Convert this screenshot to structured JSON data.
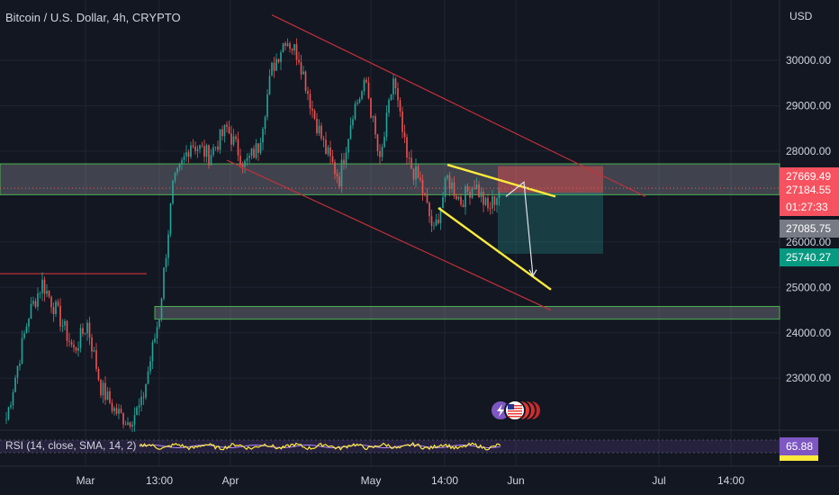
{
  "header": {
    "title": "Bitcoin / U.S. Dollar, 4h, CRYPTO",
    "currency": "USD"
  },
  "indicator": {
    "rsi_label": "RSI (14, close, SMA, 14, 2)",
    "rsi_value": "65.88"
  },
  "price_tags": {
    "target": "27669.49",
    "last_price": "27184.55",
    "countdown": "01:27:33",
    "crosshair": "27085.75",
    "stop": "25740.27"
  },
  "colors": {
    "background": "#131722",
    "up": "#26a69a",
    "down": "#ef5350",
    "channel": "#c2303a",
    "wedge": "#ffeb3b",
    "zone_border": "#4caf50",
    "rsi_line": "#ffeb3b",
    "rsi_signal": "#b388ff"
  },
  "icons": [
    "lightning-icon",
    "us-flag-icon"
  ],
  "chart_data": {
    "type": "candlestick",
    "title": "Bitcoin / U.S. Dollar, 4h, CRYPTO",
    "ylabel": "USD",
    "ylim": [
      22050,
      30950
    ],
    "y_ticks": [
      "30000.00",
      "29000.00",
      "28000.00",
      "26000.00",
      "25000.00",
      "24000.00",
      "23000.00"
    ],
    "x_tick_labels": [
      "Mar",
      "13:00",
      "Apr",
      "May",
      "14:00",
      "Jun",
      "Jul",
      "14:00"
    ],
    "price_path": [
      [
        0,
        22100
      ],
      [
        3,
        23500
      ],
      [
        5,
        24400
      ],
      [
        8,
        25100
      ],
      [
        12,
        24300
      ],
      [
        15,
        23600
      ],
      [
        18,
        24200
      ],
      [
        21,
        22800
      ],
      [
        24,
        22300
      ],
      [
        27,
        22050
      ],
      [
        30,
        22400
      ],
      [
        34,
        24400
      ],
      [
        37,
        27200
      ],
      [
        41,
        28200
      ],
      [
        45,
        27900
      ],
      [
        49,
        28500
      ],
      [
        53,
        27700
      ],
      [
        56,
        28100
      ],
      [
        59,
        29800
      ],
      [
        62,
        30500
      ],
      [
        65,
        30100
      ],
      [
        68,
        28900
      ],
      [
        71,
        28000
      ],
      [
        74,
        27400
      ],
      [
        77,
        28900
      ],
      [
        80,
        29500
      ],
      [
        83,
        27700
      ],
      [
        86,
        29600
      ],
      [
        89,
        27800
      ],
      [
        92,
        27300
      ],
      [
        95,
        26200
      ],
      [
        98,
        27400
      ],
      [
        101,
        26900
      ],
      [
        104,
        27300
      ],
      [
        107,
        26700
      ],
      [
        110,
        27200
      ]
    ],
    "drawings": {
      "resistance_zone": [
        27040,
        27720
      ],
      "support_zone": [
        24300,
        24580
      ],
      "previous_level": 25300,
      "channel_upper": [
        [
          59,
          31000
        ],
        [
          142,
          27000
        ]
      ],
      "channel_lower": [
        [
          49,
          27800
        ],
        [
          121,
          24500
        ]
      ],
      "wedge_upper": [
        [
          98,
          27700
        ],
        [
          122,
          27000
        ]
      ],
      "wedge_lower": [
        [
          96,
          26750
        ],
        [
          121,
          24950
        ]
      ],
      "projection": [
        [
          111,
          27000
        ],
        [
          115,
          27320
        ],
        [
          117,
          25250
        ]
      ],
      "long_position": {
        "entry": 27085.75,
        "target": 27669.49,
        "stop": 25740.27
      }
    },
    "rsi": {
      "value": 65.88,
      "overbought": 70,
      "oversold": 30
    }
  }
}
